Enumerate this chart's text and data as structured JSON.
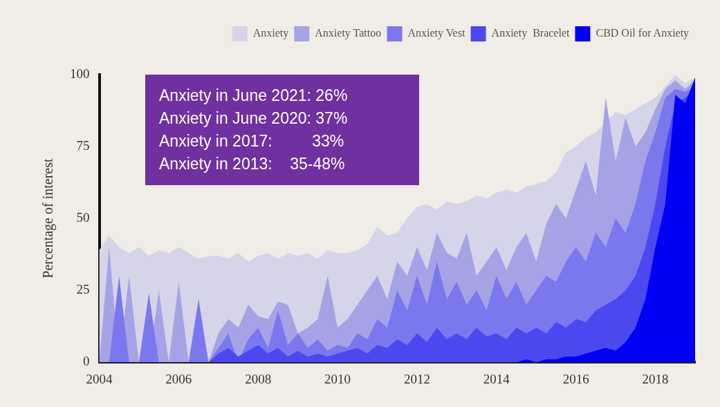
{
  "chart_data": {
    "type": "area",
    "ylabel": "Percentage of interest",
    "legend": "top right",
    "annotations": [
      "Anxiety in June 2021: 26%",
      "Anxiety in June 2020: 37%",
      "Anxiety in 2017:         33%",
      "Anxiety in 2013:    35-48%"
    ],
    "x": [
      2004,
      2004.25,
      2004.5,
      2004.75,
      2005,
      2005.25,
      2005.5,
      2005.75,
      2006,
      2006.25,
      2006.5,
      2006.75,
      2007,
      2007.25,
      2007.5,
      2007.75,
      2008,
      2008.25,
      2008.5,
      2008.75,
      2009,
      2009.25,
      2009.5,
      2009.75,
      2010,
      2010.25,
      2010.5,
      2010.75,
      2011,
      2011.25,
      2011.5,
      2011.75,
      2012,
      2012.25,
      2012.5,
      2012.75,
      2013,
      2013.25,
      2013.5,
      2013.75,
      2014,
      2014.25,
      2014.5,
      2014.75,
      2015,
      2015.25,
      2015.5,
      2015.75,
      2016,
      2016.25,
      2016.5,
      2016.75,
      2017,
      2017.25,
      2017.5,
      2017.75,
      2018,
      2018.25,
      2018.5,
      2018.75,
      2019
    ],
    "xlim": [
      2004,
      2019
    ],
    "xticks": [
      2004,
      2006,
      2008,
      2010,
      2012,
      2014,
      2016,
      2018
    ],
    "ylim": [
      0,
      100
    ],
    "yticks": [
      0,
      25,
      50,
      75,
      100
    ],
    "series": [
      {
        "name": "Anxiety",
        "color": "#d6d4e8",
        "values": [
          39,
          44,
          40,
          38,
          40,
          37,
          39,
          38,
          40,
          38,
          36,
          37,
          37,
          36,
          38,
          35,
          37,
          38,
          36,
          38,
          37,
          38,
          36,
          39,
          38,
          38,
          39,
          41,
          47,
          44,
          45,
          50,
          54,
          55,
          53,
          56,
          55,
          56,
          58,
          57,
          59,
          60,
          59,
          61,
          62,
          63,
          66,
          73,
          75,
          78,
          80,
          null,
          87,
          86,
          88,
          90,
          92,
          96,
          100,
          97,
          99
        ]
      },
      {
        "name": "Anxiety Tattoo",
        "color": "#a5a3e6",
        "values": [
          0,
          40,
          0,
          30,
          0,
          0,
          25,
          0,
          28,
          0,
          0,
          0,
          10,
          15,
          12,
          20,
          16,
          15,
          21,
          20,
          10,
          12,
          15,
          30,
          12,
          15,
          20,
          25,
          30,
          22,
          35,
          30,
          40,
          32,
          45,
          38,
          36,
          45,
          30,
          35,
          40,
          32,
          40,
          45,
          35,
          48,
          55,
          50,
          60,
          70,
          58,
          92,
          70,
          85,
          75,
          80,
          88,
          95,
          98,
          95,
          98
        ]
      },
      {
        "name": "Anxiety Vest",
        "color": "#7b78ee",
        "values": [
          0,
          0,
          30,
          0,
          0,
          24,
          0,
          0,
          0,
          0,
          22,
          0,
          5,
          10,
          0,
          8,
          12,
          5,
          18,
          6,
          10,
          5,
          8,
          4,
          6,
          5,
          10,
          8,
          15,
          12,
          25,
          18,
          30,
          20,
          35,
          22,
          28,
          20,
          25,
          18,
          30,
          22,
          28,
          20,
          25,
          30,
          28,
          35,
          40,
          35,
          45,
          40,
          50,
          45,
          55,
          70,
          80,
          92,
          95,
          94,
          96
        ]
      },
      {
        "name": "Anxiety  Bracelet",
        "color": "#4c48f0",
        "values": [
          0,
          0,
          0,
          0,
          0,
          0,
          0,
          0,
          0,
          0,
          0,
          0,
          3,
          5,
          2,
          4,
          6,
          3,
          5,
          2,
          4,
          2,
          3,
          2,
          3,
          4,
          5,
          3,
          6,
          5,
          8,
          6,
          10,
          7,
          12,
          8,
          10,
          8,
          12,
          9,
          10,
          8,
          12,
          10,
          12,
          10,
          14,
          12,
          15,
          14,
          18,
          20,
          22,
          25,
          30,
          40,
          55,
          75,
          90,
          92,
          95
        ]
      },
      {
        "name": "CBD Oil for Anxiety",
        "color": "#0000f5",
        "values": [
          0,
          0,
          0,
          0,
          0,
          0,
          0,
          0,
          0,
          0,
          0,
          0,
          0,
          0,
          0,
          0,
          0,
          0,
          0,
          0,
          0,
          0,
          0,
          0,
          0,
          0,
          0,
          0,
          0,
          0,
          0,
          0,
          0,
          0,
          0,
          0,
          0,
          0,
          0,
          0,
          0,
          0,
          0,
          1,
          0,
          1,
          1,
          2,
          2,
          3,
          4,
          5,
          4,
          7,
          12,
          22,
          40,
          55,
          93,
          90,
          99
        ]
      }
    ]
  }
}
